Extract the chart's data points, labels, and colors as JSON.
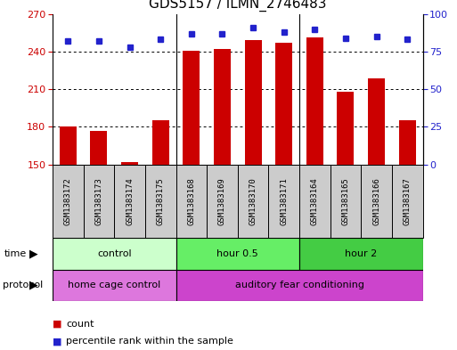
{
  "title": "GDS5157 / ILMN_2746483",
  "samples": [
    "GSM1383172",
    "GSM1383173",
    "GSM1383174",
    "GSM1383175",
    "GSM1383168",
    "GSM1383169",
    "GSM1383170",
    "GSM1383171",
    "GSM1383164",
    "GSM1383165",
    "GSM1383166",
    "GSM1383167"
  ],
  "counts": [
    180,
    177,
    152,
    185,
    241,
    242,
    249,
    247,
    251,
    208,
    219,
    185
  ],
  "percentiles": [
    82,
    82,
    78,
    83,
    87,
    87,
    91,
    88,
    90,
    84,
    85,
    83
  ],
  "ymin": 150,
  "ymax": 270,
  "yticks": [
    150,
    180,
    210,
    240,
    270
  ],
  "y2min": 0,
  "y2max": 100,
  "y2ticks": [
    0,
    25,
    50,
    75,
    100
  ],
  "bar_color": "#cc0000",
  "dot_color": "#2222cc",
  "bar_width": 0.55,
  "time_groups": [
    {
      "label": "control",
      "start": 0,
      "end": 4,
      "color": "#ccffcc"
    },
    {
      "label": "hour 0.5",
      "start": 4,
      "end": 8,
      "color": "#66ee66"
    },
    {
      "label": "hour 2",
      "start": 8,
      "end": 12,
      "color": "#44cc44"
    }
  ],
  "protocol_groups": [
    {
      "label": "home cage control",
      "start": 0,
      "end": 4,
      "color": "#dd77dd"
    },
    {
      "label": "auditory fear conditioning",
      "start": 4,
      "end": 12,
      "color": "#cc44cc"
    }
  ],
  "legend_count_color": "#cc0000",
  "legend_dot_color": "#2222cc",
  "background_color": "#ffffff",
  "grid_color": "#000000",
  "tick_label_color_left": "#cc0000",
  "tick_label_color_right": "#2222cc",
  "xlabel_bg": "#cccccc"
}
